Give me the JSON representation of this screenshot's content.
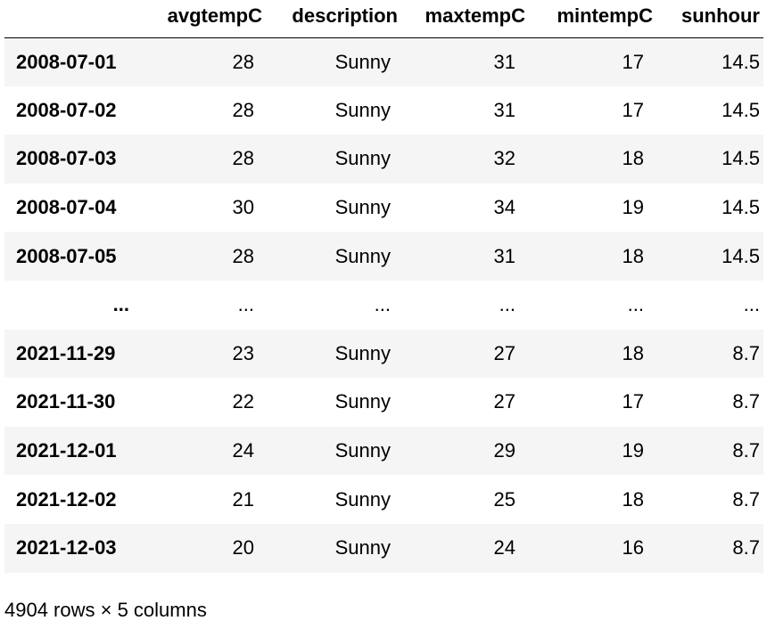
{
  "table": {
    "index_header": "",
    "columns": [
      "avgtempC",
      "description",
      "maxtempC",
      "mintempC",
      "sunhour"
    ],
    "rows": [
      {
        "index": "2008-07-01",
        "values": [
          "28",
          "Sunny",
          "31",
          "17",
          "14.5"
        ]
      },
      {
        "index": "2008-07-02",
        "values": [
          "28",
          "Sunny",
          "31",
          "17",
          "14.5"
        ]
      },
      {
        "index": "2008-07-03",
        "values": [
          "28",
          "Sunny",
          "32",
          "18",
          "14.5"
        ]
      },
      {
        "index": "2008-07-04",
        "values": [
          "30",
          "Sunny",
          "34",
          "19",
          "14.5"
        ]
      },
      {
        "index": "2008-07-05",
        "values": [
          "28",
          "Sunny",
          "31",
          "18",
          "14.5"
        ]
      },
      {
        "index": "...",
        "values": [
          "...",
          "...",
          "...",
          "...",
          "..."
        ]
      },
      {
        "index": "2021-11-29",
        "values": [
          "23",
          "Sunny",
          "27",
          "18",
          "8.7"
        ]
      },
      {
        "index": "2021-11-30",
        "values": [
          "22",
          "Sunny",
          "27",
          "17",
          "8.7"
        ]
      },
      {
        "index": "2021-12-01",
        "values": [
          "24",
          "Sunny",
          "29",
          "19",
          "8.7"
        ]
      },
      {
        "index": "2021-12-02",
        "values": [
          "21",
          "Sunny",
          "25",
          "18",
          "8.7"
        ]
      },
      {
        "index": "2021-12-03",
        "values": [
          "20",
          "Sunny",
          "24",
          "16",
          "8.7"
        ]
      }
    ]
  },
  "shape_info": "4904 rows × 5 columns"
}
